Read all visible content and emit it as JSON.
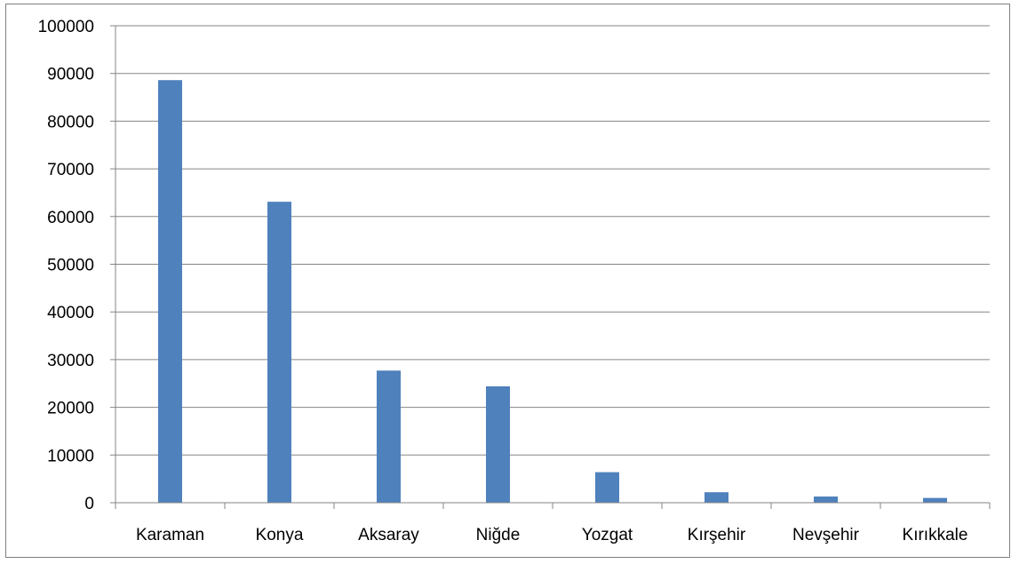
{
  "chart_data": {
    "type": "bar",
    "categories": [
      "Karaman",
      "Konya",
      "Aksaray",
      "Niğde",
      "Yozgat",
      "Kırşehir",
      "Nevşehir",
      "Kırıkkale"
    ],
    "values": [
      88600,
      63100,
      27700,
      24400,
      6400,
      2200,
      1300,
      1000
    ],
    "title": "",
    "xlabel": "",
    "ylabel": "",
    "ylim": [
      0,
      100000
    ],
    "yticks": [
      "0",
      "10000",
      "20000",
      "30000",
      "40000",
      "50000",
      "60000",
      "70000",
      "80000",
      "90000",
      "100000"
    ],
    "grid": "horizontal",
    "legend": "none",
    "bar_color": "#4f81bd",
    "grid_color": "#868686"
  }
}
